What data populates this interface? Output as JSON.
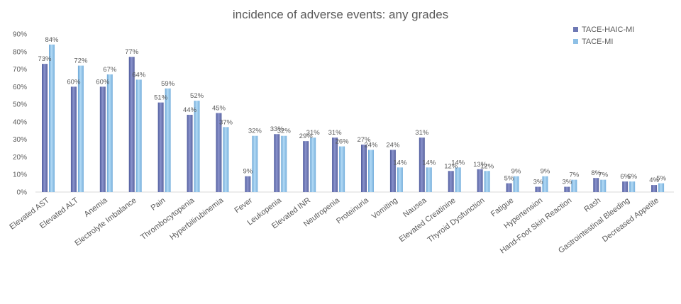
{
  "chart_data": {
    "type": "bar",
    "title": "incidence of adverse events: any grades",
    "xlabel": "",
    "ylabel": "",
    "ylim": [
      0,
      90
    ],
    "yticks": [
      "0%",
      "10%",
      "20%",
      "30%",
      "40%",
      "50%",
      "60%",
      "70%",
      "80%",
      "90%"
    ],
    "grid": false,
    "legend_position": "top-right",
    "categories": [
      "Elevated AST",
      "Elevated ALT",
      "Anemia",
      "Electrolyte Imbalance",
      "Pain",
      "Thrombocytopenia",
      "Hyperbilirubinemia",
      "Fever",
      "Leukopenia",
      "Elevated INR",
      "Neutropenia",
      "Proteinuria",
      "Vomiting",
      "Nausea",
      "Elevated Creatinine",
      "Thyroid Dysfunction",
      "Fatigue",
      "Hypertension",
      "Hand-Foot Skin Reaction",
      "Rash",
      "Gastrointestinal Bleeding",
      "Decreased Appetite"
    ],
    "series": [
      {
        "name": "TACE-HAIC-MI",
        "color": "#6E78B4",
        "values": [
          73,
          60,
          60,
          77,
          51,
          44,
          45,
          9,
          33,
          29,
          31,
          27,
          24,
          31,
          12,
          13,
          5,
          3,
          3,
          8,
          6,
          4
        ],
        "labels": [
          "73%",
          "60%",
          "60%",
          "77%",
          "51%",
          "44%",
          "45%",
          "9%",
          "33%",
          "29%",
          "31%",
          "27%",
          "24%",
          "31%",
          "12%",
          "13%",
          "5%",
          "3%",
          "3%",
          "8%",
          "6%",
          "4%"
        ]
      },
      {
        "name": "TACE-MI",
        "color": "#8EC0E6",
        "values": [
          84,
          72,
          67,
          64,
          59,
          52,
          37,
          32,
          32,
          31,
          26,
          24,
          14,
          14,
          14,
          12,
          9,
          9,
          7,
          7,
          6,
          5
        ],
        "labels": [
          "84%",
          "72%",
          "67%",
          "64%",
          "59%",
          "52%",
          "37%",
          "32%",
          "32%",
          "31%",
          "26%",
          "24%",
          "14%",
          "14%",
          "14%",
          "12%",
          "9%",
          "9%",
          "7%",
          "7%",
          "6%",
          "5%"
        ]
      }
    ]
  }
}
